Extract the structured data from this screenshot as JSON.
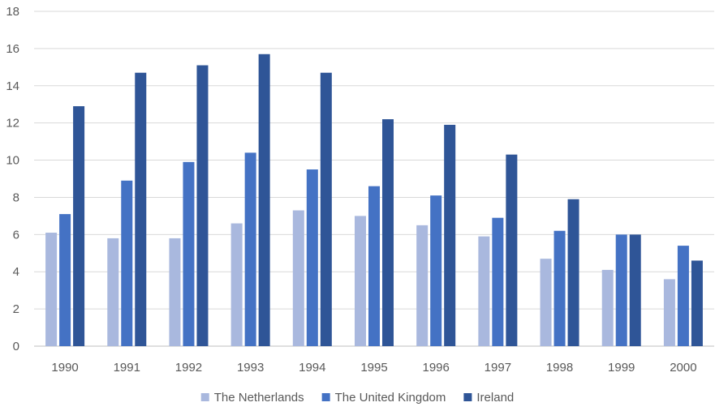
{
  "chart_data": {
    "type": "bar",
    "title": "",
    "xlabel": "",
    "ylabel": "",
    "ylim": [
      0,
      18
    ],
    "yticks": [
      0,
      2,
      4,
      6,
      8,
      10,
      12,
      14,
      16,
      18
    ],
    "grid": true,
    "legend_position": "bottom",
    "categories": [
      "1990",
      "1991",
      "1992",
      "1993",
      "1994",
      "1995",
      "1996",
      "1997",
      "1998",
      "1999",
      "2000"
    ],
    "series": [
      {
        "name": "The Netherlands",
        "color": "#a9b8de",
        "values": [
          6.1,
          5.8,
          5.8,
          6.6,
          7.3,
          7.0,
          6.5,
          5.9,
          4.7,
          4.1,
          3.6
        ]
      },
      {
        "name": "The United Kingdom",
        "color": "#4472c4",
        "values": [
          7.1,
          8.9,
          9.9,
          10.4,
          9.5,
          8.6,
          8.1,
          6.9,
          6.2,
          6.0,
          5.4
        ]
      },
      {
        "name": "Ireland",
        "color": "#2f5597",
        "values": [
          12.9,
          14.7,
          15.1,
          15.7,
          14.7,
          12.2,
          11.9,
          10.3,
          7.9,
          6.0,
          4.6
        ]
      }
    ]
  }
}
